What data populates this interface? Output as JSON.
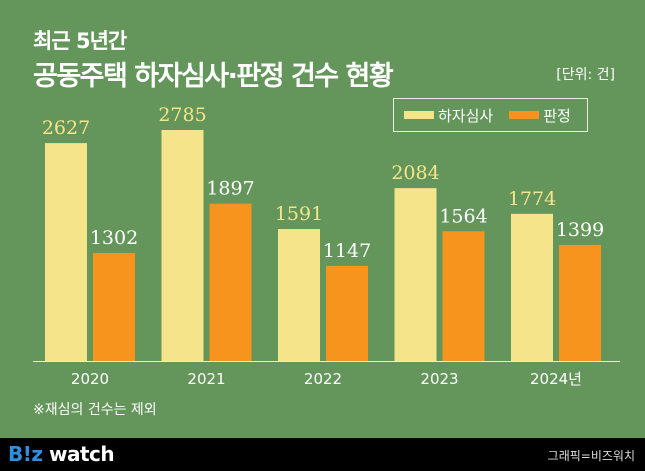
{
  "header": {
    "subtitle": "최근 5년간",
    "title": "공동주택 하자심사·판정 건수 현황",
    "unit": "[단위: 건]"
  },
  "note": "※재심의 건수는 제외",
  "footer": {
    "logo": "B!z watch",
    "credit": "그래픽=비즈워치"
  },
  "colors": {
    "background": "#64965c",
    "series1": "#f5e48a",
    "series2": "#f7941d",
    "footer": "#000000"
  },
  "chart_data": {
    "type": "bar",
    "title": "공동주택 하자심사·판정 건수 현황",
    "unit": "[단위: 건]",
    "categories": [
      "2020",
      "2021",
      "2022",
      "2023",
      "2024년"
    ],
    "series": [
      {
        "name": "하자심사",
        "values": [
          2627,
          2785,
          1591,
          2084,
          1774
        ]
      },
      {
        "name": "판정",
        "values": [
          1302,
          1897,
          1147,
          1564,
          1399
        ]
      }
    ],
    "ylim": [
      0,
      2785
    ],
    "grid": false,
    "legend": "top-right"
  }
}
